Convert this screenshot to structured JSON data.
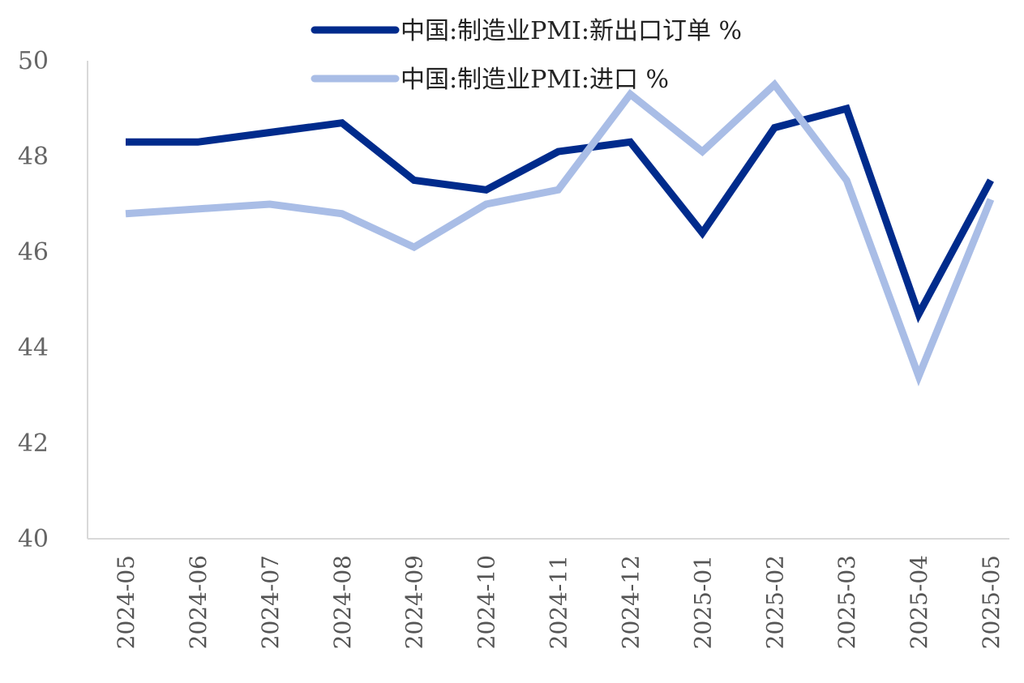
{
  "chart_data": {
    "type": "line",
    "categories": [
      "2024-05",
      "2024-06",
      "2024-07",
      "2024-08",
      "2024-09",
      "2024-10",
      "2024-11",
      "2024-12",
      "2025-01",
      "2025-02",
      "2025-03",
      "2025-04",
      "2025-05"
    ],
    "series": [
      {
        "name": "中国:制造业PMI:新出口订单 %",
        "color": "#002b8c",
        "values": [
          48.3,
          48.3,
          48.5,
          48.7,
          47.5,
          47.3,
          48.1,
          48.3,
          46.4,
          48.6,
          49.0,
          44.7,
          47.5
        ]
      },
      {
        "name": "中国:制造业PMI:进口 %",
        "color": "#a9bde6",
        "values": [
          46.8,
          46.9,
          47.0,
          46.8,
          46.1,
          47.0,
          47.3,
          49.3,
          48.1,
          49.5,
          47.5,
          43.4,
          47.1
        ]
      }
    ],
    "ylim": [
      40,
      50
    ],
    "yticks": [
      "40",
      "42",
      "44",
      "46",
      "48",
      "50"
    ],
    "xlabel": "",
    "ylabel": "",
    "grid": false,
    "legend_position": "top-center"
  }
}
